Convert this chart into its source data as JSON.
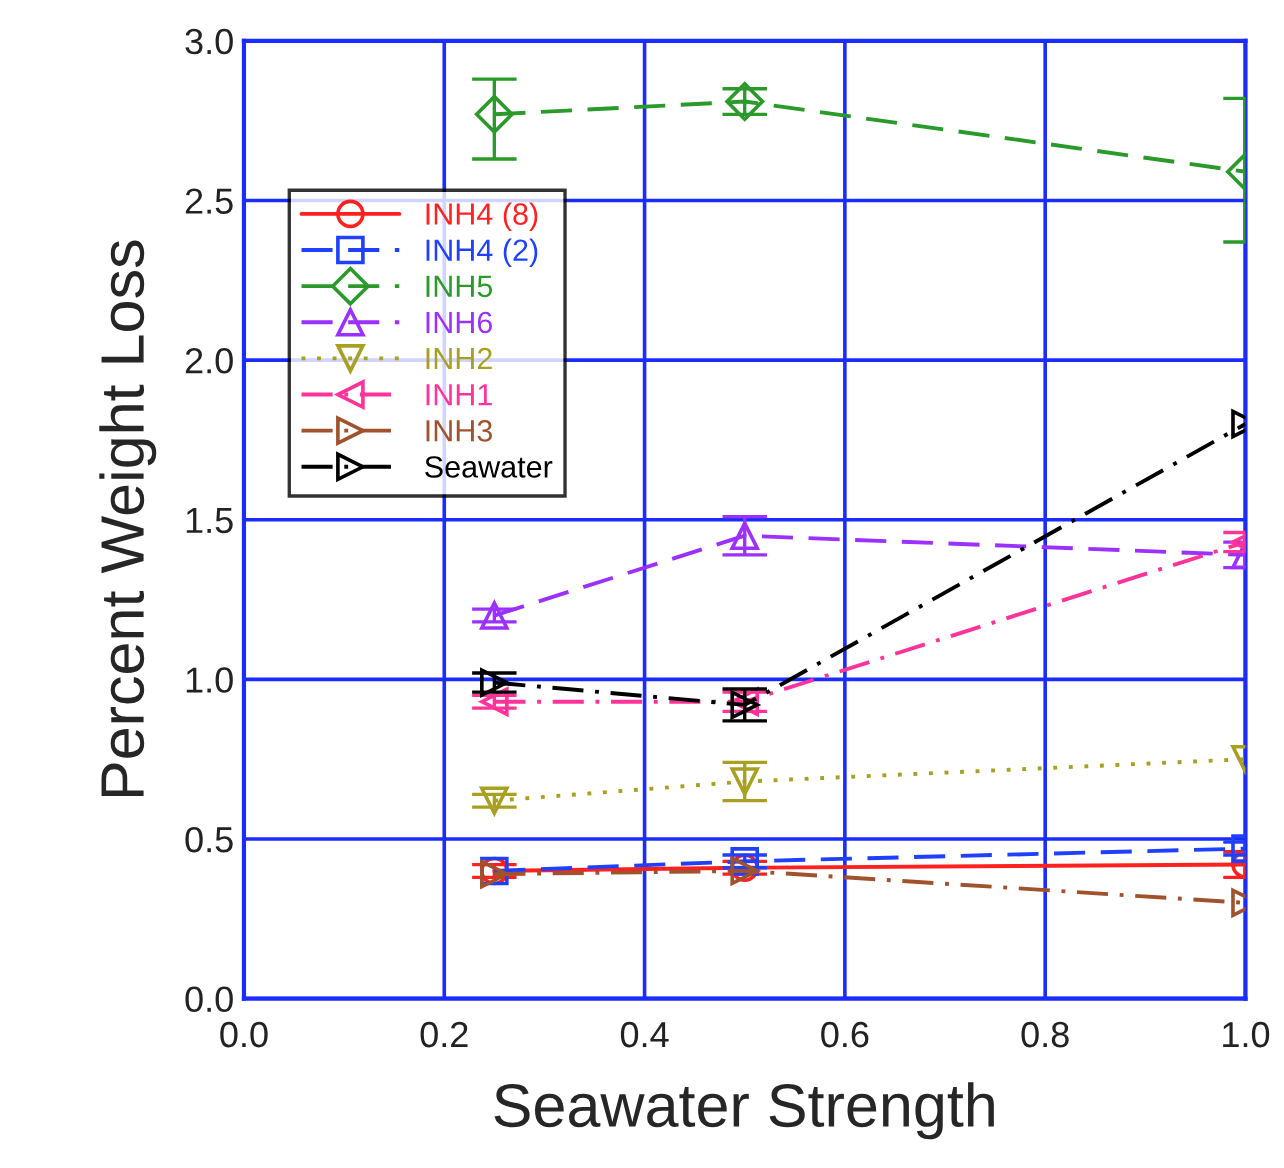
{
  "chart_data": {
    "type": "line",
    "xlabel": "Seawater Strength",
    "ylabel": "Percent Weight Loss",
    "x": [
      0.25,
      0.5,
      1.0
    ],
    "xlim": [
      0.0,
      1.0
    ],
    "xticks": [
      {
        "value": 0.0,
        "label": "0.0"
      },
      0.2,
      0.4,
      0.6,
      0.8,
      {
        "value": 1.0,
        "label": "1.0"
      }
    ],
    "ylim": [
      0.0,
      3.0
    ],
    "yticks": [
      {
        "value": 0.0,
        "label": "0.0"
      },
      0.5,
      {
        "value": 1.0,
        "label": "1.0"
      },
      1.5,
      {
        "value": 2.0,
        "label": "2.0"
      },
      2.5,
      {
        "value": 3.0,
        "label": "3.0"
      }
    ],
    "grid": true,
    "legend": "top left",
    "series": [
      {
        "name": "INH4 (8)",
        "color": "#ff2020",
        "marker": "circle",
        "line_style": "solid",
        "values": [
          0.4,
          0.41,
          0.42
        ],
        "errors": [
          0.02,
          0.02,
          0.04
        ]
      },
      {
        "name": "INH4 (2)",
        "color": "#2040ff",
        "marker": "square",
        "line_style": "dashed",
        "values": [
          0.4,
          0.43,
          0.47
        ],
        "errors": [
          null,
          0.02,
          0.02
        ]
      },
      {
        "name": "INH5",
        "color": "#2a9a2a",
        "marker": "diamond",
        "line_style": "dashed",
        "values": [
          2.77,
          2.81,
          2.59
        ],
        "errors": [
          [
            2.63,
            2.88
          ],
          [
            2.77,
            2.85
          ],
          [
            2.37,
            2.82
          ]
        ]
      },
      {
        "name": "INH6",
        "color": "#9b30ff",
        "marker": "triangle",
        "line_style": "dashed",
        "values": [
          1.2,
          1.45,
          1.39
        ],
        "errors": [
          0.02,
          0.06,
          0.04
        ]
      },
      {
        "name": "INH2",
        "color": "#a8a020",
        "marker": "triangle_down",
        "line_style": "dotted",
        "values": [
          0.62,
          0.68,
          0.75
        ],
        "errors": [
          0.02,
          [
            0.62,
            0.74
          ],
          null
        ]
      },
      {
        "name": "INH1",
        "color": "#ff3399",
        "marker": "triangle_left",
        "line_style": "dashdot",
        "values": [
          0.93,
          0.93,
          1.43
        ],
        "errors": [
          0.02,
          0.03,
          0.03
        ]
      },
      {
        "name": "INH3",
        "color": "#a0522d",
        "marker": "triangle_right",
        "line_style": "dashdot",
        "values": [
          0.39,
          0.4,
          0.3
        ]
      },
      {
        "name": "Seawater",
        "color": "#000000",
        "marker": "triangle_right",
        "line_style": "dashdot",
        "values": [
          0.99,
          0.92,
          1.8
        ],
        "errors": [
          0.03,
          [
            0.87,
            0.97
          ],
          null
        ]
      }
    ]
  }
}
